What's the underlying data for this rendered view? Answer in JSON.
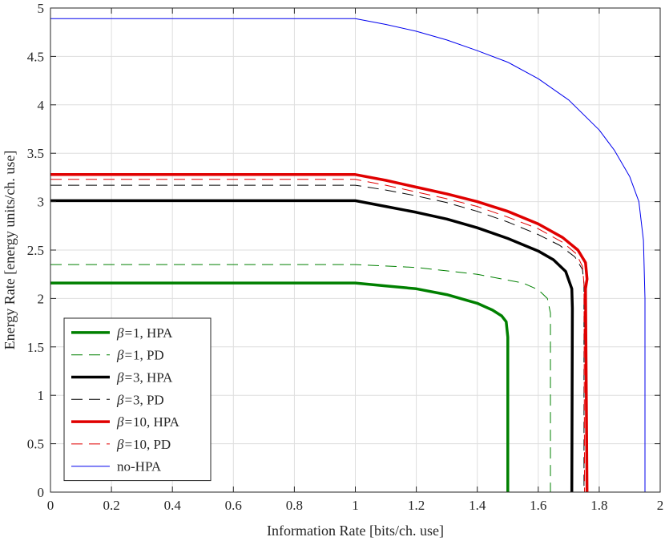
{
  "chart_data": {
    "type": "line",
    "xlabel": "Information Rate [bits/ch. use]",
    "ylabel": "Energy Rate [energy units/ch. use]",
    "xlim": [
      0,
      2
    ],
    "ylim": [
      0,
      5
    ],
    "xticks": [
      "0",
      "0.2",
      "0.4",
      "0.6",
      "0.8",
      "1",
      "1.2",
      "1.4",
      "1.6",
      "1.8",
      "2"
    ],
    "yticks": [
      "0",
      "0.5",
      "1",
      "1.5",
      "2",
      "2.5",
      "3",
      "3.5",
      "4",
      "4.5",
      "5"
    ],
    "grid": true,
    "legend_position": "bottom-left",
    "series": [
      {
        "name": "β=1, HPA",
        "beta": "1",
        "kind": "HPA",
        "color": "#008000",
        "dash": "solid",
        "width": "thick",
        "points": [
          [
            0,
            2.16
          ],
          [
            1.0,
            2.16
          ],
          [
            1.1,
            2.13
          ],
          [
            1.2,
            2.1
          ],
          [
            1.3,
            2.04
          ],
          [
            1.4,
            1.95
          ],
          [
            1.45,
            1.88
          ],
          [
            1.48,
            1.82
          ],
          [
            1.495,
            1.76
          ],
          [
            1.5,
            1.6
          ],
          [
            1.5,
            0
          ]
        ]
      },
      {
        "name": "β=1, PD",
        "beta": "1",
        "kind": "PD",
        "color": "#008000",
        "dash": "dashed",
        "width": "thin",
        "points": [
          [
            0,
            2.35
          ],
          [
            1.0,
            2.35
          ],
          [
            1.2,
            2.32
          ],
          [
            1.4,
            2.25
          ],
          [
            1.55,
            2.16
          ],
          [
            1.6,
            2.09
          ],
          [
            1.63,
            2.0
          ],
          [
            1.64,
            1.85
          ],
          [
            1.64,
            0
          ]
        ]
      },
      {
        "name": "β=3, HPA",
        "beta": "3",
        "kind": "HPA",
        "color": "#000000",
        "dash": "solid",
        "width": "thick",
        "points": [
          [
            0,
            3.01
          ],
          [
            1.0,
            3.01
          ],
          [
            1.1,
            2.95
          ],
          [
            1.2,
            2.89
          ],
          [
            1.3,
            2.82
          ],
          [
            1.4,
            2.73
          ],
          [
            1.5,
            2.62
          ],
          [
            1.6,
            2.49
          ],
          [
            1.65,
            2.4
          ],
          [
            1.69,
            2.28
          ],
          [
            1.71,
            2.1
          ],
          [
            1.712,
            1.9
          ],
          [
            1.71,
            0
          ]
        ]
      },
      {
        "name": "β=3, PD",
        "beta": "3",
        "kind": "PD",
        "color": "#000000",
        "dash": "dashed",
        "width": "thin",
        "points": [
          [
            0,
            3.17
          ],
          [
            1.0,
            3.17
          ],
          [
            1.1,
            3.12
          ],
          [
            1.2,
            3.06
          ],
          [
            1.3,
            2.99
          ],
          [
            1.4,
            2.9
          ],
          [
            1.5,
            2.79
          ],
          [
            1.6,
            2.66
          ],
          [
            1.67,
            2.55
          ],
          [
            1.72,
            2.43
          ],
          [
            1.745,
            2.3
          ],
          [
            1.75,
            2.15
          ],
          [
            1.75,
            0
          ]
        ]
      },
      {
        "name": "β=10, HPA",
        "beta": "10",
        "kind": "HPA",
        "color": "#e00000",
        "dash": "solid",
        "width": "thick",
        "points": [
          [
            0,
            3.28
          ],
          [
            1.0,
            3.28
          ],
          [
            1.1,
            3.22
          ],
          [
            1.2,
            3.15
          ],
          [
            1.3,
            3.08
          ],
          [
            1.4,
            3.0
          ],
          [
            1.5,
            2.9
          ],
          [
            1.6,
            2.77
          ],
          [
            1.68,
            2.63
          ],
          [
            1.73,
            2.5
          ],
          [
            1.755,
            2.37
          ],
          [
            1.76,
            2.2
          ],
          [
            1.755,
            2.1
          ],
          [
            1.76,
            0
          ]
        ]
      },
      {
        "name": "β=10, PD",
        "beta": "10",
        "kind": "PD",
        "color": "#e00000",
        "dash": "dashed",
        "width": "thin",
        "points": [
          [
            0,
            3.23
          ],
          [
            1.0,
            3.23
          ],
          [
            1.1,
            3.17
          ],
          [
            1.2,
            3.1
          ],
          [
            1.3,
            3.03
          ],
          [
            1.4,
            2.95
          ],
          [
            1.5,
            2.84
          ],
          [
            1.6,
            2.72
          ],
          [
            1.68,
            2.58
          ],
          [
            1.725,
            2.46
          ],
          [
            1.745,
            2.33
          ],
          [
            1.75,
            2.15
          ],
          [
            1.752,
            0
          ]
        ]
      },
      {
        "name": "no-HPA",
        "beta": "",
        "kind": "",
        "color": "#0000ee",
        "dash": "solid",
        "width": "thin",
        "points": [
          [
            0,
            4.89
          ],
          [
            1.0,
            4.89
          ],
          [
            1.1,
            4.83
          ],
          [
            1.2,
            4.76
          ],
          [
            1.3,
            4.67
          ],
          [
            1.4,
            4.56
          ],
          [
            1.5,
            4.44
          ],
          [
            1.6,
            4.27
          ],
          [
            1.7,
            4.05
          ],
          [
            1.8,
            3.74
          ],
          [
            1.85,
            3.53
          ],
          [
            1.9,
            3.26
          ],
          [
            1.93,
            3.0
          ],
          [
            1.945,
            2.6
          ],
          [
            1.95,
            2.0
          ],
          [
            1.95,
            1.5
          ],
          [
            1.95,
            0
          ]
        ]
      }
    ]
  }
}
